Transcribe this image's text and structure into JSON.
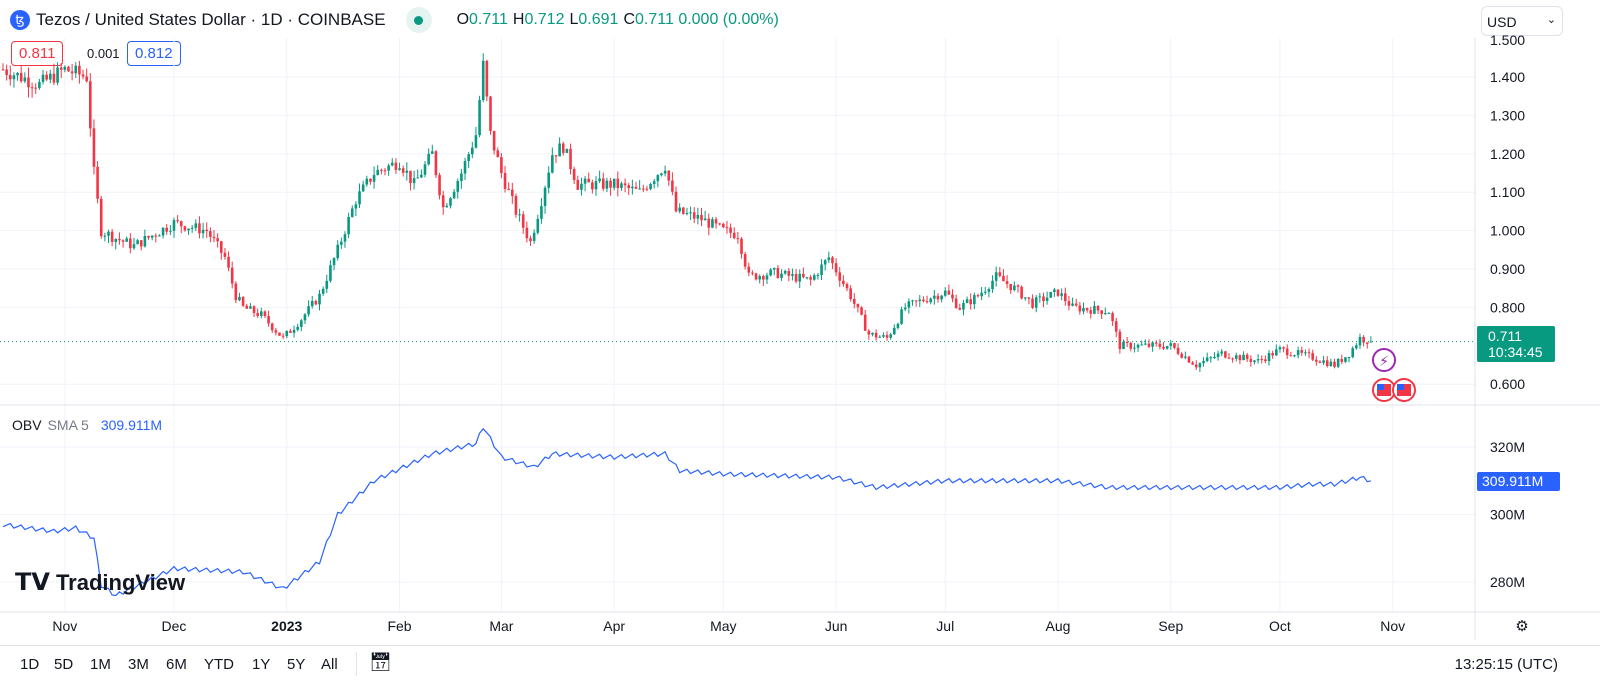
{
  "header": {
    "symbol_icon": "tezos-icon",
    "title": "Tezos / United States Dollar · 1D · COINBASE",
    "o_label": "O",
    "o": "0.711",
    "h_label": "H",
    "h": "0.712",
    "l_label": "L",
    "l": "0.691",
    "c_label": "C",
    "c": "0.711",
    "change": "0.000 (0.00%)"
  },
  "currency": "USD",
  "quote": {
    "sell": "0.811",
    "spread": "0.001",
    "buy": "0.812"
  },
  "indicator": {
    "name": "OBV",
    "sma": "SMA 5",
    "value": "309.911M"
  },
  "price_label": {
    "value": "0.711",
    "countdown": "10:34:45"
  },
  "brand": "TradingView",
  "ranges": [
    "1D",
    "5D",
    "1M",
    "3M",
    "6M",
    "YTD",
    "1Y",
    "5Y",
    "All"
  ],
  "clock": "13:25:15 (UTC)",
  "colors": {
    "up": "#089981",
    "down": "#f23645",
    "obv": "#2962ff"
  },
  "chart_data": {
    "type": "candlestick",
    "start_date": "2022-10-15",
    "interval": "1D",
    "price_ticks": [
      "1.500",
      "1.400",
      "1.300",
      "1.200",
      "1.100",
      "1.000",
      "0.900",
      "0.800",
      "0.600"
    ],
    "price_range": [
      0.55,
      1.5
    ],
    "obv_ticks": [
      "320M",
      "300M",
      "280M"
    ],
    "obv_range": [
      272,
      330
    ],
    "x_ticks": [
      {
        "label": "Nov",
        "day": 17
      },
      {
        "label": "Dec",
        "day": 47
      },
      {
        "label": "2023",
        "day": 78
      },
      {
        "label": "Feb",
        "day": 109
      },
      {
        "label": "Mar",
        "day": 137
      },
      {
        "label": "Apr",
        "day": 168
      },
      {
        "label": "May",
        "day": 198
      },
      {
        "label": "Jun",
        "day": 229
      },
      {
        "label": "Jul",
        "day": 259
      },
      {
        "label": "Aug",
        "day": 290
      },
      {
        "label": "Sep",
        "day": 321
      },
      {
        "label": "Oct",
        "day": 351
      },
      {
        "label": "Nov",
        "day": 382
      }
    ],
    "close_anchors": [
      [
        0,
        1.42
      ],
      [
        10,
        1.38
      ],
      [
        17,
        1.42
      ],
      [
        23,
        1.4
      ],
      [
        25,
        1.15
      ],
      [
        27,
        1.0
      ],
      [
        31,
        0.98
      ],
      [
        36,
        0.96
      ],
      [
        47,
        1.02
      ],
      [
        56,
        1.0
      ],
      [
        61,
        0.93
      ],
      [
        64,
        0.83
      ],
      [
        66,
        0.8
      ],
      [
        71,
        0.78
      ],
      [
        77,
        0.72
      ],
      [
        82,
        0.77
      ],
      [
        87,
        0.83
      ],
      [
        92,
        0.95
      ],
      [
        97,
        1.08
      ],
      [
        102,
        1.15
      ],
      [
        109,
        1.18
      ],
      [
        113,
        1.12
      ],
      [
        118,
        1.2
      ],
      [
        121,
        1.06
      ],
      [
        126,
        1.15
      ],
      [
        130,
        1.25
      ],
      [
        132,
        1.43
      ],
      [
        134,
        1.25
      ],
      [
        137,
        1.15
      ],
      [
        141,
        1.05
      ],
      [
        145,
        0.97
      ],
      [
        148,
        1.08
      ],
      [
        151,
        1.2
      ],
      [
        154,
        1.22
      ],
      [
        158,
        1.12
      ],
      [
        168,
        1.12
      ],
      [
        175,
        1.1
      ],
      [
        182,
        1.17
      ],
      [
        185,
        1.05
      ],
      [
        192,
        1.03
      ],
      [
        198,
        1.0
      ],
      [
        202,
        0.99
      ],
      [
        205,
        0.88
      ],
      [
        212,
        0.89
      ],
      [
        222,
        0.87
      ],
      [
        227,
        0.93
      ],
      [
        233,
        0.83
      ],
      [
        238,
        0.73
      ],
      [
        243,
        0.72
      ],
      [
        248,
        0.8
      ],
      [
        253,
        0.82
      ],
      [
        259,
        0.84
      ],
      [
        263,
        0.8
      ],
      [
        268,
        0.83
      ],
      [
        273,
        0.88
      ],
      [
        278,
        0.85
      ],
      [
        283,
        0.81
      ],
      [
        290,
        0.84
      ],
      [
        294,
        0.8
      ],
      [
        304,
        0.79
      ],
      [
        307,
        0.7
      ],
      [
        314,
        0.7
      ],
      [
        321,
        0.7
      ],
      [
        328,
        0.65
      ],
      [
        335,
        0.68
      ],
      [
        345,
        0.66
      ],
      [
        351,
        0.69
      ],
      [
        360,
        0.67
      ],
      [
        366,
        0.65
      ],
      [
        370,
        0.68
      ],
      [
        373,
        0.72
      ],
      [
        376,
        0.711
      ]
    ],
    "obv_anchors_millions": [
      [
        0,
        297
      ],
      [
        14,
        295
      ],
      [
        20,
        296
      ],
      [
        25,
        293
      ],
      [
        27,
        279
      ],
      [
        31,
        276
      ],
      [
        47,
        284
      ],
      [
        66,
        283
      ],
      [
        77,
        278
      ],
      [
        87,
        286
      ],
      [
        92,
        300
      ],
      [
        102,
        310
      ],
      [
        118,
        318
      ],
      [
        130,
        321
      ],
      [
        132,
        326
      ],
      [
        137,
        317
      ],
      [
        146,
        314
      ],
      [
        151,
        318
      ],
      [
        168,
        317
      ],
      [
        182,
        318
      ],
      [
        186,
        313
      ],
      [
        198,
        312
      ],
      [
        229,
        311
      ],
      [
        240,
        308
      ],
      [
        259,
        310
      ],
      [
        290,
        310
      ],
      [
        304,
        308
      ],
      [
        321,
        308
      ],
      [
        351,
        308
      ],
      [
        360,
        309
      ],
      [
        366,
        309
      ],
      [
        373,
        311
      ],
      [
        376,
        310
      ]
    ]
  }
}
